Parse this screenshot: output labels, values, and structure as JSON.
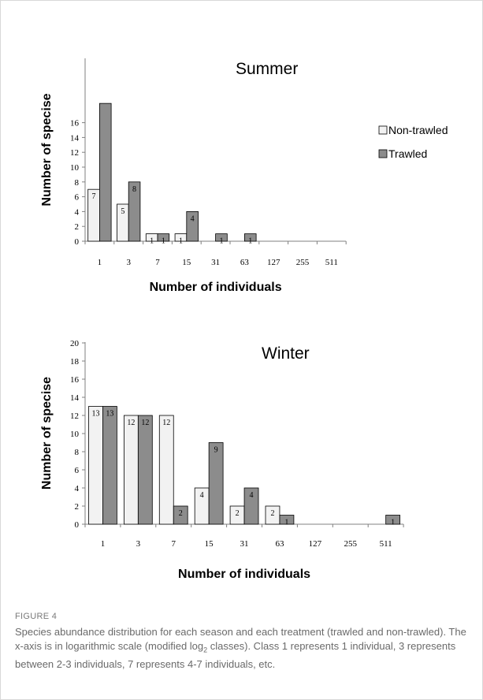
{
  "figure": {
    "label": "FIGURE 4",
    "caption_pre": "Species abundance distribution for each season and each treatment (trawled and non-trawled). The x-axis is in logarithmic scale (modified log",
    "caption_sub": "2",
    "caption_post": " classes). Class 1 represents 1 individual, 3 represents between 2-3 individuals, 7 represents 4-7 individuals, etc."
  },
  "colors": {
    "non_trawled": "#f2f2f2",
    "trawled": "#8c8c8c",
    "axis": "#808080"
  },
  "chart_data": [
    {
      "type": "bar",
      "title": "Summer",
      "xlabel": "Number of individuals",
      "ylabel": "Number of specise",
      "categories": [
        "1",
        "3",
        "7",
        "15",
        "31",
        "63",
        "127",
        "255",
        "511"
      ],
      "yticks": [
        "0",
        "2",
        "4",
        "6",
        "8",
        "10",
        "12",
        "14",
        "16"
      ],
      "ylim": [
        0,
        20
      ],
      "legend_position": "right",
      "series": [
        {
          "name": "Non-trawled",
          "values": [
            7,
            5,
            1,
            1,
            0,
            0,
            0,
            0,
            0
          ]
        },
        {
          "name": "Trawled",
          "values": [
            18.6,
            8,
            1,
            4,
            1,
            1,
            0,
            0,
            0
          ]
        }
      ],
      "data_labels": [
        [
          "7",
          "5",
          "1",
          "1",
          "",
          "",
          "",
          "",
          ""
        ],
        [
          "",
          "8",
          "1",
          "4",
          "1",
          "1",
          "",
          "",
          ""
        ]
      ]
    },
    {
      "type": "bar",
      "title": "Winter",
      "xlabel": "Number of individuals",
      "ylabel": "Number of specise",
      "categories": [
        "1",
        "3",
        "7",
        "15",
        "31",
        "63",
        "127",
        "255",
        "511"
      ],
      "yticks": [
        "0",
        "2",
        "4",
        "6",
        "8",
        "10",
        "12",
        "14",
        "16",
        "18",
        "20"
      ],
      "ylim": [
        0,
        20
      ],
      "series": [
        {
          "name": "Non-trawled",
          "values": [
            13,
            12,
            12,
            4,
            2,
            2,
            0,
            0,
            0
          ]
        },
        {
          "name": "Trawled",
          "values": [
            13,
            12,
            2,
            9,
            4,
            1,
            0,
            0,
            1
          ]
        }
      ],
      "data_labels": [
        [
          "13",
          "12",
          "12",
          "4",
          "2",
          "2",
          "",
          "",
          ""
        ],
        [
          "13",
          "12",
          "2",
          "9",
          "4",
          "1",
          "",
          "",
          "1"
        ]
      ]
    }
  ]
}
